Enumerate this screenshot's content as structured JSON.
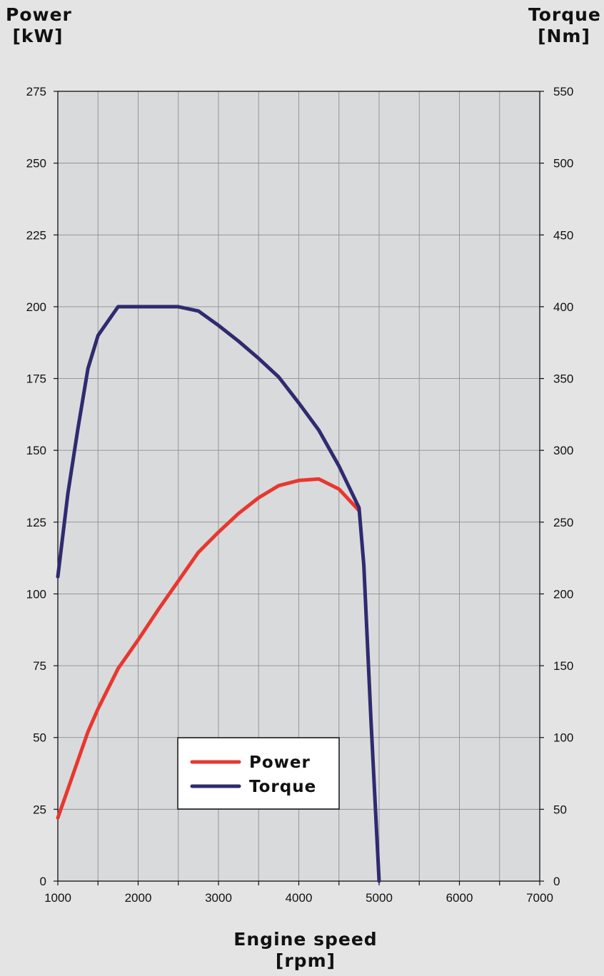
{
  "chart_data": {
    "type": "line",
    "title": "",
    "y_left_label_line1": "Power",
    "y_left_label_line2": "[kW]",
    "y_right_label_line1": "Torque",
    "y_right_label_line2": "[Nm]",
    "x_label_line1": "Engine speed",
    "x_label_line2": "[rpm]",
    "xlim": [
      1000,
      7000
    ],
    "x_ticks": [
      1000,
      2000,
      3000,
      4000,
      5000,
      6000,
      7000
    ],
    "x_minor_step": 500,
    "ylim_left": [
      0,
      275
    ],
    "y_left_ticks": [
      0,
      25,
      50,
      75,
      100,
      125,
      150,
      175,
      200,
      225,
      250,
      275
    ],
    "ylim_right": [
      0,
      550
    ],
    "y_right_ticks": [
      0,
      50,
      100,
      150,
      200,
      250,
      300,
      350,
      400,
      450,
      500,
      550
    ],
    "grid": true,
    "legend_position": "bottom-center",
    "series": [
      {
        "name": "Power",
        "axis": "left",
        "color": "#e8372f",
        "points": [
          [
            1000,
            22
          ],
          [
            1100,
            30
          ],
          [
            1250,
            42
          ],
          [
            1375,
            52
          ],
          [
            1500,
            60
          ],
          [
            1750,
            74
          ],
          [
            2000,
            84
          ],
          [
            2250,
            94.5
          ],
          [
            2500,
            104.5
          ],
          [
            2750,
            114.5
          ],
          [
            3000,
            121.5
          ],
          [
            3250,
            128
          ],
          [
            3500,
            133.5
          ],
          [
            3750,
            137.7
          ],
          [
            4000,
            139.5
          ],
          [
            4250,
            140
          ],
          [
            4500,
            136.5
          ],
          [
            4750,
            129
          ]
        ]
      },
      {
        "name": "Torque",
        "axis": "right",
        "color": "#2e2b6f",
        "points": [
          [
            1000,
            212
          ],
          [
            1125,
            270
          ],
          [
            1250,
            315
          ],
          [
            1375,
            357
          ],
          [
            1500,
            380
          ],
          [
            1750,
            400
          ],
          [
            2000,
            400
          ],
          [
            2250,
            400
          ],
          [
            2500,
            400
          ],
          [
            2750,
            397
          ],
          [
            3000,
            387
          ],
          [
            3250,
            376
          ],
          [
            3500,
            364
          ],
          [
            3750,
            351
          ],
          [
            4000,
            333
          ],
          [
            4250,
            314
          ],
          [
            4500,
            289
          ],
          [
            4750,
            260
          ],
          [
            4810,
            220
          ],
          [
            4900,
            110
          ],
          [
            5000,
            0
          ]
        ]
      }
    ]
  }
}
